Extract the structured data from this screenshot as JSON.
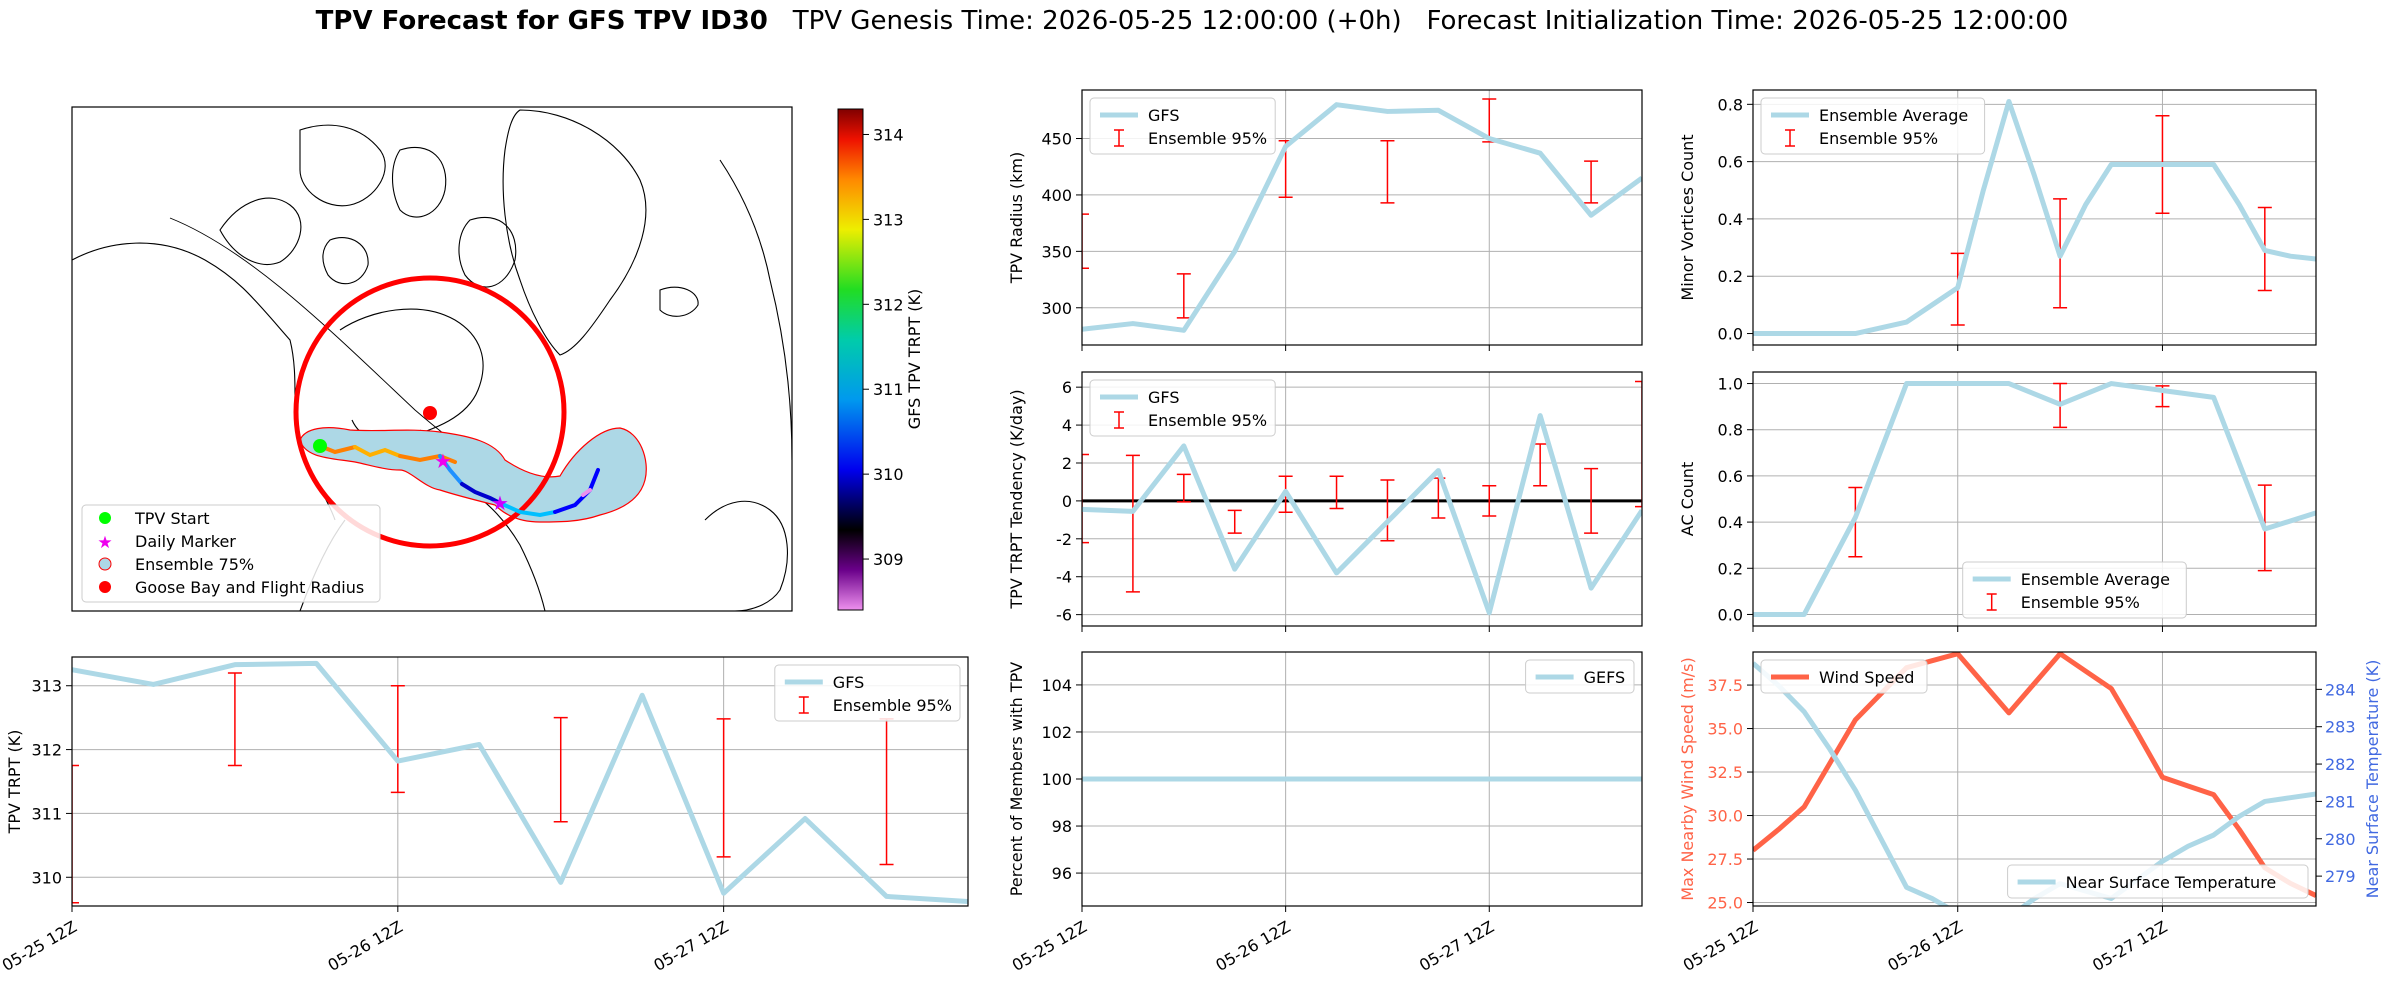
{
  "title": {
    "bold": "TPV Forecast for GFS TPV ID30",
    "genesis": "TPV Genesis Time: 2026-05-25 12:00:00 (+0h)",
    "init": "Forecast Initialization Time: 2026-05-25 12:00:00"
  },
  "colors": {
    "gfs_line": "#add8e6",
    "error_bar": "#ff0000",
    "wind": "#ff6347",
    "temp_axis": "#4169e1",
    "wind_axis": "#ff6347",
    "flight_radius": "#ff0000",
    "ensemble_fill": "#add8e6"
  },
  "x_ticks": [
    "05-25 12Z",
    "05-26 12Z",
    "05-27 12Z"
  ],
  "map": {
    "colorbar": {
      "label": "GFS TPV TRPT (K)",
      "ticks": [
        309,
        310,
        311,
        312,
        313,
        314
      ],
      "range": [
        308.4,
        314.3
      ]
    },
    "legend": [
      {
        "label": "TPV Start",
        "marker": "green-dot"
      },
      {
        "label": "Daily Marker",
        "marker": "magenta-star"
      },
      {
        "label": "Ensemble 75%",
        "marker": "ensemble-patch"
      },
      {
        "label": "Goose Bay and Flight Radius",
        "marker": "red-dot"
      }
    ]
  },
  "chart_data": [
    {
      "id": "trpt",
      "type": "line",
      "ylabel": "TPV TRPT (K)",
      "ylim": [
        309.55,
        313.45
      ],
      "yticks": [
        310,
        311,
        312,
        313
      ],
      "legend": [
        "GFS",
        "Ensemble 95%"
      ],
      "legend_position": "top-right",
      "series": [
        {
          "name": "GFS",
          "x": [
            0,
            6,
            12,
            18,
            24,
            30,
            36,
            42,
            48,
            54,
            60,
            66
          ],
          "values": [
            313.25,
            313.02,
            313.33,
            313.35,
            311.82,
            312.08,
            309.92,
            312.85,
            309.75,
            310.92,
            309.7,
            309.62
          ]
        }
      ],
      "error_bars": [
        {
          "x": 0,
          "low": 309.6,
          "high": 311.75
        },
        {
          "x": 12,
          "low": 311.75,
          "high": 313.2
        },
        {
          "x": 24,
          "low": 311.33,
          "high": 313.0
        },
        {
          "x": 36,
          "low": 310.87,
          "high": 312.5
        },
        {
          "x": 48,
          "low": 310.32,
          "high": 312.48
        },
        {
          "x": 60,
          "low": 310.2,
          "high": 312.48
        }
      ]
    },
    {
      "id": "radius",
      "type": "line",
      "ylabel": "TPV Radius (km)",
      "ylim": [
        267,
        493
      ],
      "yticks": [
        300,
        350,
        400,
        450
      ],
      "legend": [
        "GFS",
        "Ensemble 95%"
      ],
      "legend_position": "top-left",
      "series": [
        {
          "name": "GFS",
          "x": [
            0,
            6,
            12,
            18,
            24,
            30,
            36,
            42,
            48,
            54,
            60,
            66
          ],
          "values": [
            281,
            286,
            280,
            350,
            443,
            480,
            474,
            475,
            450,
            437,
            382,
            415
          ]
        }
      ],
      "error_bars": [
        {
          "x": 0,
          "low": 335,
          "high": 383
        },
        {
          "x": 12,
          "low": 291,
          "high": 330
        },
        {
          "x": 24,
          "low": 398,
          "high": 448
        },
        {
          "x": 36,
          "low": 393,
          "high": 448
        },
        {
          "x": 48,
          "low": 447,
          "high": 485
        },
        {
          "x": 60,
          "low": 393,
          "high": 430
        }
      ]
    },
    {
      "id": "tendency",
      "type": "line",
      "ylabel": "TPV TRPT Tendency (K/day)",
      "ylim": [
        -6.6,
        6.8
      ],
      "yticks": [
        -6,
        -4,
        -2,
        0,
        2,
        4,
        6
      ],
      "legend": [
        "GFS",
        "Ensemble 95%"
      ],
      "legend_position": "top-left",
      "series": [
        {
          "name": "GFS",
          "x": [
            0,
            6,
            12,
            18,
            24,
            30,
            36,
            42,
            48,
            54,
            60,
            66
          ],
          "values": [
            -0.45,
            -0.55,
            2.9,
            -3.6,
            0.5,
            -3.8,
            -1.1,
            1.6,
            -5.9,
            4.5,
            -4.6,
            -0.5
          ]
        }
      ],
      "error_bars": [
        {
          "x": 0,
          "low": -2.2,
          "high": 2.45
        },
        {
          "x": 6,
          "low": -4.8,
          "high": 2.4
        },
        {
          "x": 12,
          "low": -0.05,
          "high": 1.4
        },
        {
          "x": 18,
          "low": -1.7,
          "high": -0.5
        },
        {
          "x": 24,
          "low": -0.6,
          "high": 1.3
        },
        {
          "x": 30,
          "low": -0.4,
          "high": 1.3
        },
        {
          "x": 36,
          "low": -2.1,
          "high": 1.1
        },
        {
          "x": 42,
          "low": -0.9,
          "high": 1.2
        },
        {
          "x": 48,
          "low": -0.8,
          "high": 0.8
        },
        {
          "x": 54,
          "low": 0.8,
          "high": 3.0
        },
        {
          "x": 60,
          "low": -1.7,
          "high": 1.7
        },
        {
          "x": 66,
          "low": -0.3,
          "high": 6.3
        }
      ]
    },
    {
      "id": "percent",
      "type": "line",
      "ylabel": "Percent of Members with TPV",
      "ylim": [
        94.6,
        105.4
      ],
      "yticks": [
        96,
        98,
        100,
        102,
        104
      ],
      "legend": [
        "GEFS"
      ],
      "legend_position": "top-right",
      "series": [
        {
          "name": "GEFS",
          "x": [
            0,
            66
          ],
          "values": [
            100,
            100
          ]
        }
      ],
      "error_bars": []
    },
    {
      "id": "minor",
      "type": "line",
      "ylabel": "Minor Vortices Count",
      "ylim": [
        -0.04,
        0.85
      ],
      "yticks": [
        0.0,
        0.2,
        0.4,
        0.6,
        0.8
      ],
      "legend": [
        "Ensemble Average",
        "Ensemble 95%"
      ],
      "legend_position": "top-left",
      "series": [
        {
          "name": "Ensemble Average",
          "x": [
            0,
            3,
            6,
            9,
            12,
            15,
            18,
            21,
            24,
            27,
            30,
            33,
            36,
            39,
            42,
            45,
            48,
            51,
            54,
            57,
            60,
            63,
            66
          ],
          "values": [
            0,
            0,
            0,
            0,
            0,
            0.02,
            0.04,
            0.1,
            0.16,
            0.5,
            0.81,
            0.55,
            0.27,
            0.45,
            0.59,
            0.59,
            0.59,
            0.59,
            0.59,
            0.45,
            0.29,
            0.27,
            0.26
          ]
        }
      ],
      "error_bars": [
        {
          "x": 0,
          "low": 0,
          "high": 0
        },
        {
          "x": 12,
          "low": 0,
          "high": 0
        },
        {
          "x": 24,
          "low": 0.03,
          "high": 0.28
        },
        {
          "x": 36,
          "low": 0.09,
          "high": 0.47
        },
        {
          "x": 48,
          "low": 0.42,
          "high": 0.76
        },
        {
          "x": 60,
          "low": 0.15,
          "high": 0.44
        }
      ]
    },
    {
      "id": "ac",
      "type": "line",
      "ylabel": "AC Count",
      "ylim": [
        -0.05,
        1.05
      ],
      "yticks": [
        0.0,
        0.2,
        0.4,
        0.6,
        0.8,
        1.0
      ],
      "legend": [
        "Ensemble Average",
        "Ensemble 95%"
      ],
      "legend_position": "bottom-center",
      "series": [
        {
          "name": "Ensemble Average",
          "x": [
            0,
            6,
            12,
            18,
            24,
            30,
            36,
            42,
            48,
            54,
            60,
            66
          ],
          "values": [
            0,
            0,
            0.42,
            1,
            1,
            1,
            0.91,
            1,
            0.97,
            0.94,
            0.37,
            0.44
          ]
        }
      ],
      "error_bars": [
        {
          "x": 12,
          "low": 0.25,
          "high": 0.55
        },
        {
          "x": 24,
          "low": 1,
          "high": 1
        },
        {
          "x": 36,
          "low": 0.81,
          "high": 1.0
        },
        {
          "x": 48,
          "low": 0.9,
          "high": 0.99
        },
        {
          "x": 60,
          "low": 0.19,
          "high": 0.56
        }
      ]
    },
    {
      "id": "wind",
      "type": "line",
      "ylabel": "Max Nearby Wind Speed (m/s)",
      "ylim": [
        24.8,
        39.4
      ],
      "yticks": [
        25.0,
        27.5,
        30.0,
        32.5,
        35.0,
        37.5
      ],
      "legend": [
        "Wind Speed"
      ],
      "legend_position": "top-left",
      "series": [
        {
          "name": "Wind Speed",
          "x": [
            0,
            3,
            6,
            9,
            12,
            15,
            18,
            21,
            24,
            27,
            30,
            33,
            36,
            39,
            42,
            45,
            48,
            51,
            54,
            57,
            60,
            63,
            66
          ],
          "values": [
            28.0,
            29.2,
            30.5,
            33.0,
            35.5,
            37.0,
            38.5,
            38.9,
            39.3,
            37.6,
            35.9,
            37.6,
            39.3,
            38.3,
            37.3,
            34.8,
            32.2,
            31.7,
            31.2,
            29.2,
            27.0,
            26.1,
            25.4
          ]
        }
      ],
      "y2label": "Near Surface Temperature (K)",
      "y2lim": [
        278.2,
        285.0
      ],
      "y2ticks": [
        279,
        280,
        281,
        282,
        283,
        284
      ],
      "legend2": [
        "Near Surface Temperature"
      ],
      "legend2_position": "bottom-right",
      "series2": [
        {
          "name": "Near Surface Temperature",
          "x": [
            0,
            3,
            6,
            9,
            12,
            15,
            18,
            21,
            24,
            27,
            30,
            33,
            36,
            39,
            42,
            45,
            48,
            51,
            54,
            57,
            60,
            63,
            66
          ],
          "values": [
            284.7,
            284.1,
            283.4,
            282.4,
            281.3,
            280.0,
            278.7,
            278.4,
            278.0,
            277.95,
            277.9,
            278.4,
            278.8,
            278.6,
            278.4,
            278.9,
            279.4,
            279.8,
            280.1,
            280.6,
            281.0,
            281.1,
            281.2
          ]
        }
      ]
    }
  ]
}
